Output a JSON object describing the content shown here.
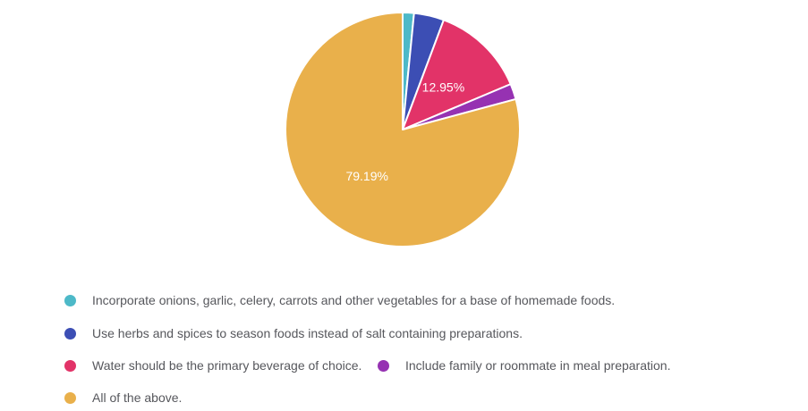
{
  "chart_data": {
    "type": "pie",
    "title": "",
    "legend_position": "bottom-left",
    "direction": "clockwise",
    "start_angle_deg": 0,
    "label_color": "#FFFFFF",
    "separator_color": "#FFFFFF",
    "slices": [
      {
        "label": "Incorporate onions, garlic, celery, carrots and other vegetables for a base of homemade foods.",
        "value": 1.55,
        "display_value": "",
        "show_label": false,
        "color": "#4DB9C8"
      },
      {
        "label": "Use herbs and spices to season foods instead of salt containing preparations.",
        "value": 4.15,
        "display_value": "",
        "show_label": false,
        "color": "#3C4EB4"
      },
      {
        "label": "Water should be the primary beverage of choice.",
        "value": 12.95,
        "display_value": "12.95%",
        "show_label": true,
        "color": "#E23368"
      },
      {
        "label": "Include family or roommate in meal preparation.",
        "value": 2.16,
        "display_value": "",
        "show_label": false,
        "color": "#9632B2"
      },
      {
        "label": "All of the above.",
        "value": 79.19,
        "display_value": "79.19%",
        "show_label": true,
        "color": "#E9B04B"
      }
    ]
  }
}
